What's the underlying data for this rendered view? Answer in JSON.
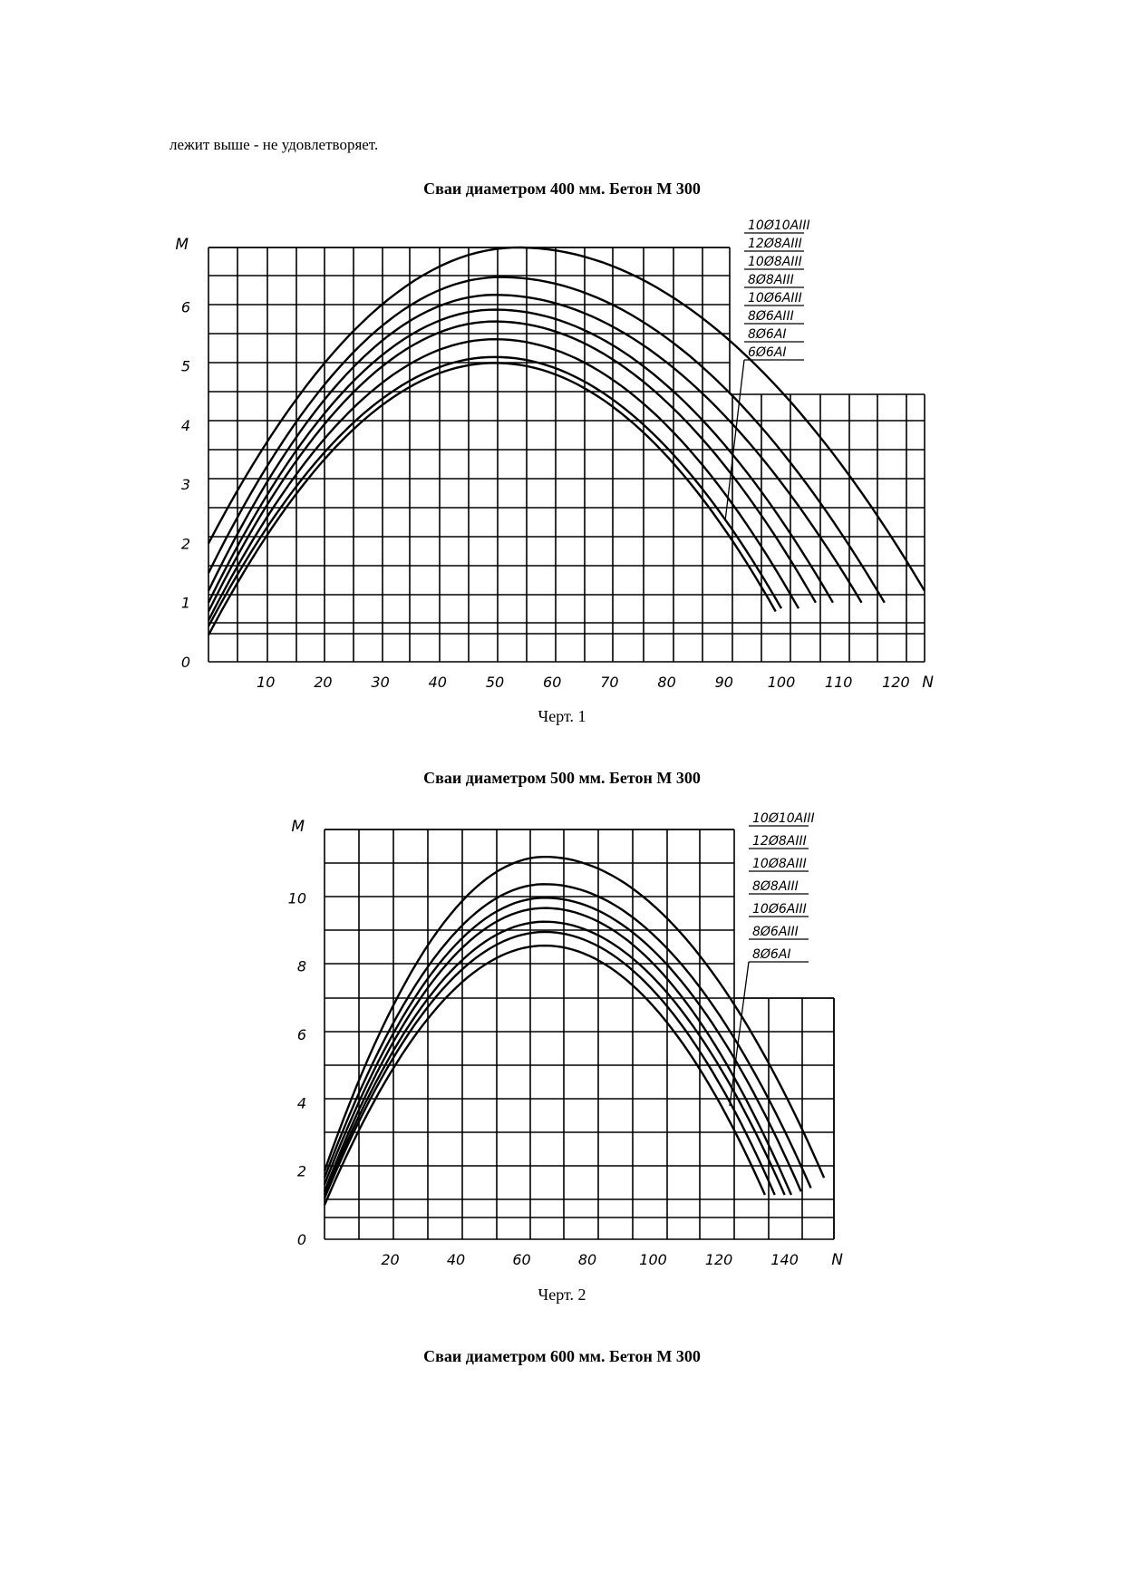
{
  "page": {
    "intro_text": "лежит выше - не удовлетворяет.",
    "heading1": "Сваи диаметром 400 мм. Бетон М 300",
    "caption1": "Черт. 1",
    "heading2": "Сваи диаметром 500 мм. Бетон М 300",
    "caption2": "Черт. 2",
    "heading3": "Сваи диаметром 600 мм. Бетон М 300"
  },
  "chart_data": [
    {
      "type": "line",
      "title": "Сваи диаметром 400 мм. Бетон М 300",
      "caption": "Черт. 1",
      "ylabel": "M",
      "xlabel": "N",
      "xlim": [
        0,
        125
      ],
      "ylim": [
        0,
        7
      ],
      "x_ticks": [
        "10",
        "20",
        "30",
        "40",
        "50",
        "60",
        "70",
        "80",
        "90",
        "100",
        "110",
        "120"
      ],
      "y_ticks": [
        "0",
        "1",
        "2",
        "3",
        "4",
        "5",
        "6"
      ],
      "grid": true,
      "legend_position": "top-right",
      "series": [
        {
          "name": "10Ø10AIII",
          "values": [
            [
              0,
              2.0
            ],
            [
              54,
              7.0
            ],
            [
              125,
              1.2
            ]
          ]
        },
        {
          "name": "12Ø8AIII",
          "values": [
            [
              0,
              1.5
            ],
            [
              51,
              6.5
            ],
            [
              118,
              1.0
            ]
          ]
        },
        {
          "name": "10Ø8AIII",
          "values": [
            [
              0,
              1.2
            ],
            [
              50,
              6.2
            ],
            [
              114,
              1.0
            ]
          ]
        },
        {
          "name": "8Ø8AIII",
          "values": [
            [
              0,
              1.0
            ],
            [
              50,
              5.95
            ],
            [
              109,
              1.0
            ]
          ]
        },
        {
          "name": "10Ø6AIII",
          "values": [
            [
              0,
              0.85
            ],
            [
              50,
              5.75
            ],
            [
              106,
              1.0
            ]
          ]
        },
        {
          "name": "8Ø6AIII",
          "values": [
            [
              0,
              0.7
            ],
            [
              50,
              5.45
            ],
            [
              103,
              0.9
            ]
          ]
        },
        {
          "name": "8Ø6AI",
          "values": [
            [
              0,
              0.6
            ],
            [
              50,
              5.15
            ],
            [
              100,
              0.9
            ]
          ]
        },
        {
          "name": "6Ø6AI",
          "values": [
            [
              0,
              0.45
            ],
            [
              50,
              5.05
            ],
            [
              99,
              0.85
            ]
          ]
        }
      ]
    },
    {
      "type": "line",
      "title": "Сваи диаметром 500 мм. Бетон М 300",
      "caption": "Черт. 2",
      "ylabel": "M",
      "xlabel": "N",
      "xlim": [
        0,
        155
      ],
      "ylim": [
        0,
        12
      ],
      "x_ticks": [
        "20",
        "40",
        "60",
        "80",
        "100",
        "120",
        "140"
      ],
      "y_ticks": [
        "0",
        "2",
        "4",
        "6",
        "8",
        "10"
      ],
      "grid": true,
      "legend_position": "top-right",
      "series": [
        {
          "name": "10Ø10AIII",
          "values": [
            [
              0,
              2.0
            ],
            [
              67,
              11.2
            ],
            [
              152,
              1.8
            ]
          ]
        },
        {
          "name": "12Ø8AIII",
          "values": [
            [
              0,
              1.8
            ],
            [
              67,
              10.4
            ],
            [
              148,
              1.5
            ]
          ]
        },
        {
          "name": "10Ø8AIII",
          "values": [
            [
              0,
              1.6
            ],
            [
              67,
              10.0
            ],
            [
              145,
              1.4
            ]
          ]
        },
        {
          "name": "8Ø8AIII",
          "values": [
            [
              0,
              1.4
            ],
            [
              67,
              9.7
            ],
            [
              142,
              1.3
            ]
          ]
        },
        {
          "name": "10Ø6AIII",
          "values": [
            [
              0,
              1.3
            ],
            [
              67,
              9.3
            ],
            [
              140,
              1.3
            ]
          ]
        },
        {
          "name": "8Ø6AIII",
          "values": [
            [
              0,
              1.2
            ],
            [
              67,
              9.0
            ],
            [
              137,
              1.3
            ]
          ]
        },
        {
          "name": "8Ø6AI",
          "values": [
            [
              0,
              1.0
            ],
            [
              67,
              8.6
            ],
            [
              134,
              1.3
            ]
          ]
        }
      ]
    }
  ]
}
